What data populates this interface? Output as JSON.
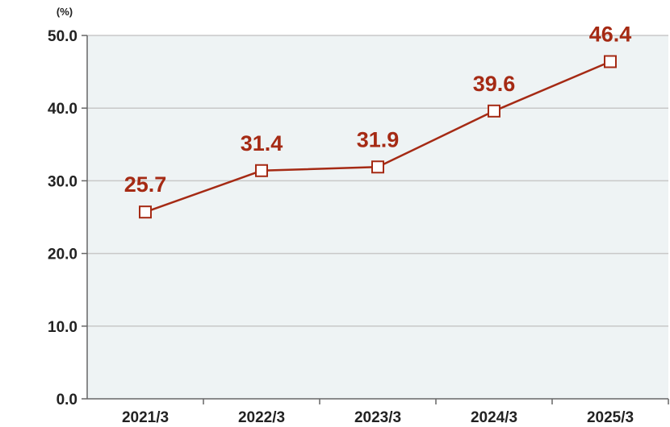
{
  "chart_data": {
    "type": "line",
    "unit_label": "(%)",
    "categories": [
      "2021/3",
      "2022/3",
      "2023/3",
      "2024/3",
      "2025/3"
    ],
    "series": [
      {
        "values": [
          25.7,
          31.4,
          31.9,
          39.6,
          46.4
        ]
      }
    ],
    "data_labels": [
      "25.7",
      "31.4",
      "31.9",
      "39.6",
      "46.4"
    ],
    "y_ticks": [
      "0.0",
      "10.0",
      "20.0",
      "30.0",
      "40.0",
      "50.0"
    ],
    "ylim": [
      0,
      50
    ],
    "grid": true,
    "marker": "open-square",
    "colors": {
      "line": "#a52a14",
      "label": "#a52a14",
      "plot_background": "#eef3f4",
      "grid": "#c8c8c8",
      "axis": "#666666"
    }
  }
}
